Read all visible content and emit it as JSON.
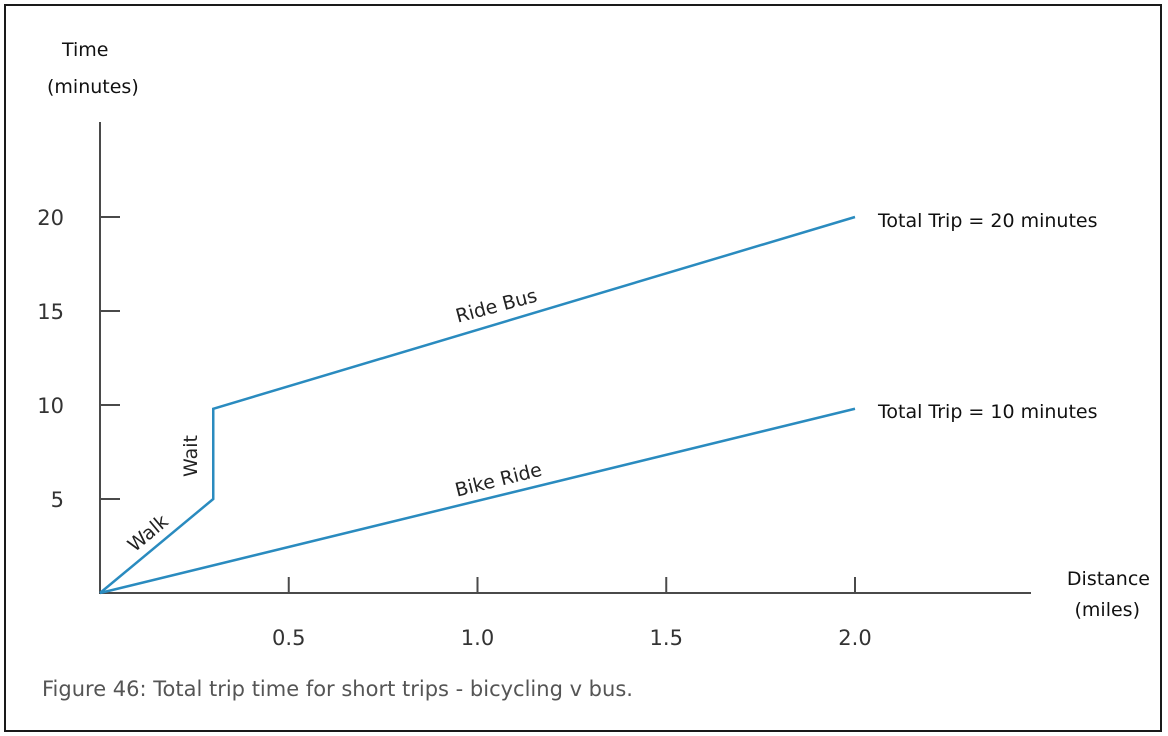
{
  "caption": "Figure 46: Total trip time for short trips - bicycling v bus.",
  "colors": {
    "line": "#2a8bbf",
    "axis": "#4a4a4a"
  },
  "chart_data": {
    "type": "line",
    "xlabel_lines": [
      "Distance",
      "(miles)"
    ],
    "ylabel_lines": [
      "Time",
      "(minutes)"
    ],
    "xlim": [
      0,
      2.45
    ],
    "ylim": [
      0,
      25
    ],
    "x_ticks": [
      {
        "value": 0.5,
        "label": "0.5"
      },
      {
        "value": 1.0,
        "label": "1.0"
      },
      {
        "value": 1.5,
        "label": "1.5"
      },
      {
        "value": 2.0,
        "label": "2.0"
      }
    ],
    "y_ticks": [
      {
        "value": 5,
        "label": "5"
      },
      {
        "value": 10,
        "label": "10"
      },
      {
        "value": 15,
        "label": "15"
      },
      {
        "value": 20,
        "label": "20"
      }
    ],
    "grid": false,
    "legend": "none",
    "series": [
      {
        "points": [
          [
            0,
            0
          ],
          [
            0.3,
            5
          ],
          [
            0.3,
            9.8
          ],
          [
            2.0,
            20
          ]
        ],
        "end_label": "Total Trip = 20 minutes",
        "segment_labels": [
          "Walk",
          "Wait",
          "Ride Bus"
        ]
      },
      {
        "points": [
          [
            0,
            0
          ],
          [
            2.0,
            9.8
          ]
        ],
        "end_label": "Total Trip = 10 minutes",
        "segment_labels": [
          "Bike Ride"
        ]
      }
    ]
  }
}
